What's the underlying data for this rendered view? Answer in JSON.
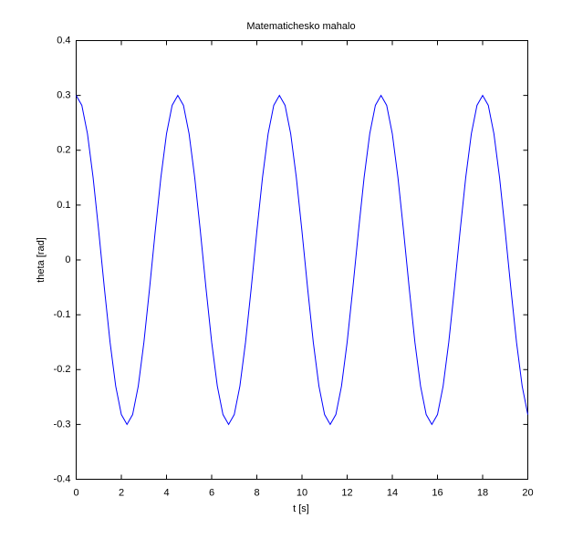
{
  "chart_data": {
    "type": "line",
    "title": "Matematichesko mahalo",
    "x_label": "t [s]",
    "y_label": "theta [rad]",
    "x": [
      0,
      0.25,
      0.5,
      0.75,
      1,
      1.25,
      1.5,
      1.75,
      2,
      2.25,
      2.5,
      2.75,
      3,
      3.25,
      3.5,
      3.75,
      4,
      4.25,
      4.5,
      4.75,
      5,
      5.25,
      5.5,
      5.75,
      6,
      6.25,
      6.5,
      6.75,
      7,
      7.25,
      7.5,
      7.75,
      8,
      8.25,
      8.5,
      8.75,
      9,
      9.25,
      9.5,
      9.75,
      10,
      10.25,
      10.5,
      10.75,
      11,
      11.25,
      11.5,
      11.75,
      12,
      12.25,
      12.5,
      12.75,
      13,
      13.25,
      13.5,
      13.75,
      14,
      14.25,
      14.5,
      14.75,
      15,
      15.25,
      15.5,
      15.75,
      16,
      16.25,
      16.5,
      16.75,
      17,
      17.25,
      17.5,
      17.75,
      18,
      18.25,
      18.5,
      18.75,
      19,
      19.25,
      19.5,
      19.75,
      20
    ],
    "series": [
      {
        "color": "#0000ff",
        "values": [
          0.3,
          0.282,
          0.23,
          0.15,
          0.052,
          -0.052,
          -0.15,
          -0.23,
          -0.282,
          -0.3,
          -0.282,
          -0.23,
          -0.15,
          -0.052,
          0.052,
          0.15,
          0.23,
          0.282,
          0.3,
          0.282,
          0.23,
          0.15,
          0.052,
          -0.052,
          -0.15,
          -0.23,
          -0.282,
          -0.3,
          -0.282,
          -0.23,
          -0.15,
          -0.052,
          0.052,
          0.15,
          0.23,
          0.282,
          0.3,
          0.282,
          0.23,
          0.15,
          0.052,
          -0.052,
          -0.15,
          -0.23,
          -0.282,
          -0.3,
          -0.282,
          -0.23,
          -0.15,
          -0.052,
          0.052,
          0.15,
          0.23,
          0.282,
          0.3,
          0.282,
          0.23,
          0.15,
          0.052,
          -0.052,
          -0.15,
          -0.23,
          -0.282,
          -0.3,
          -0.282,
          -0.23,
          -0.15,
          -0.052,
          0.052,
          0.15,
          0.23,
          0.282,
          0.3,
          0.282,
          0.23,
          0.15,
          0.052,
          -0.052,
          -0.15,
          -0.23,
          -0.282
        ]
      }
    ],
    "xlim": [
      0,
      20
    ],
    "xticks": [
      0,
      2,
      4,
      6,
      8,
      10,
      12,
      14,
      16,
      18,
      20
    ],
    "ylim": [
      -0.4,
      0.4
    ],
    "yticks": [
      -0.4,
      -0.3,
      -0.2,
      -0.1,
      0,
      0.1,
      0.2,
      0.3,
      0.4
    ],
    "grid": false
  }
}
